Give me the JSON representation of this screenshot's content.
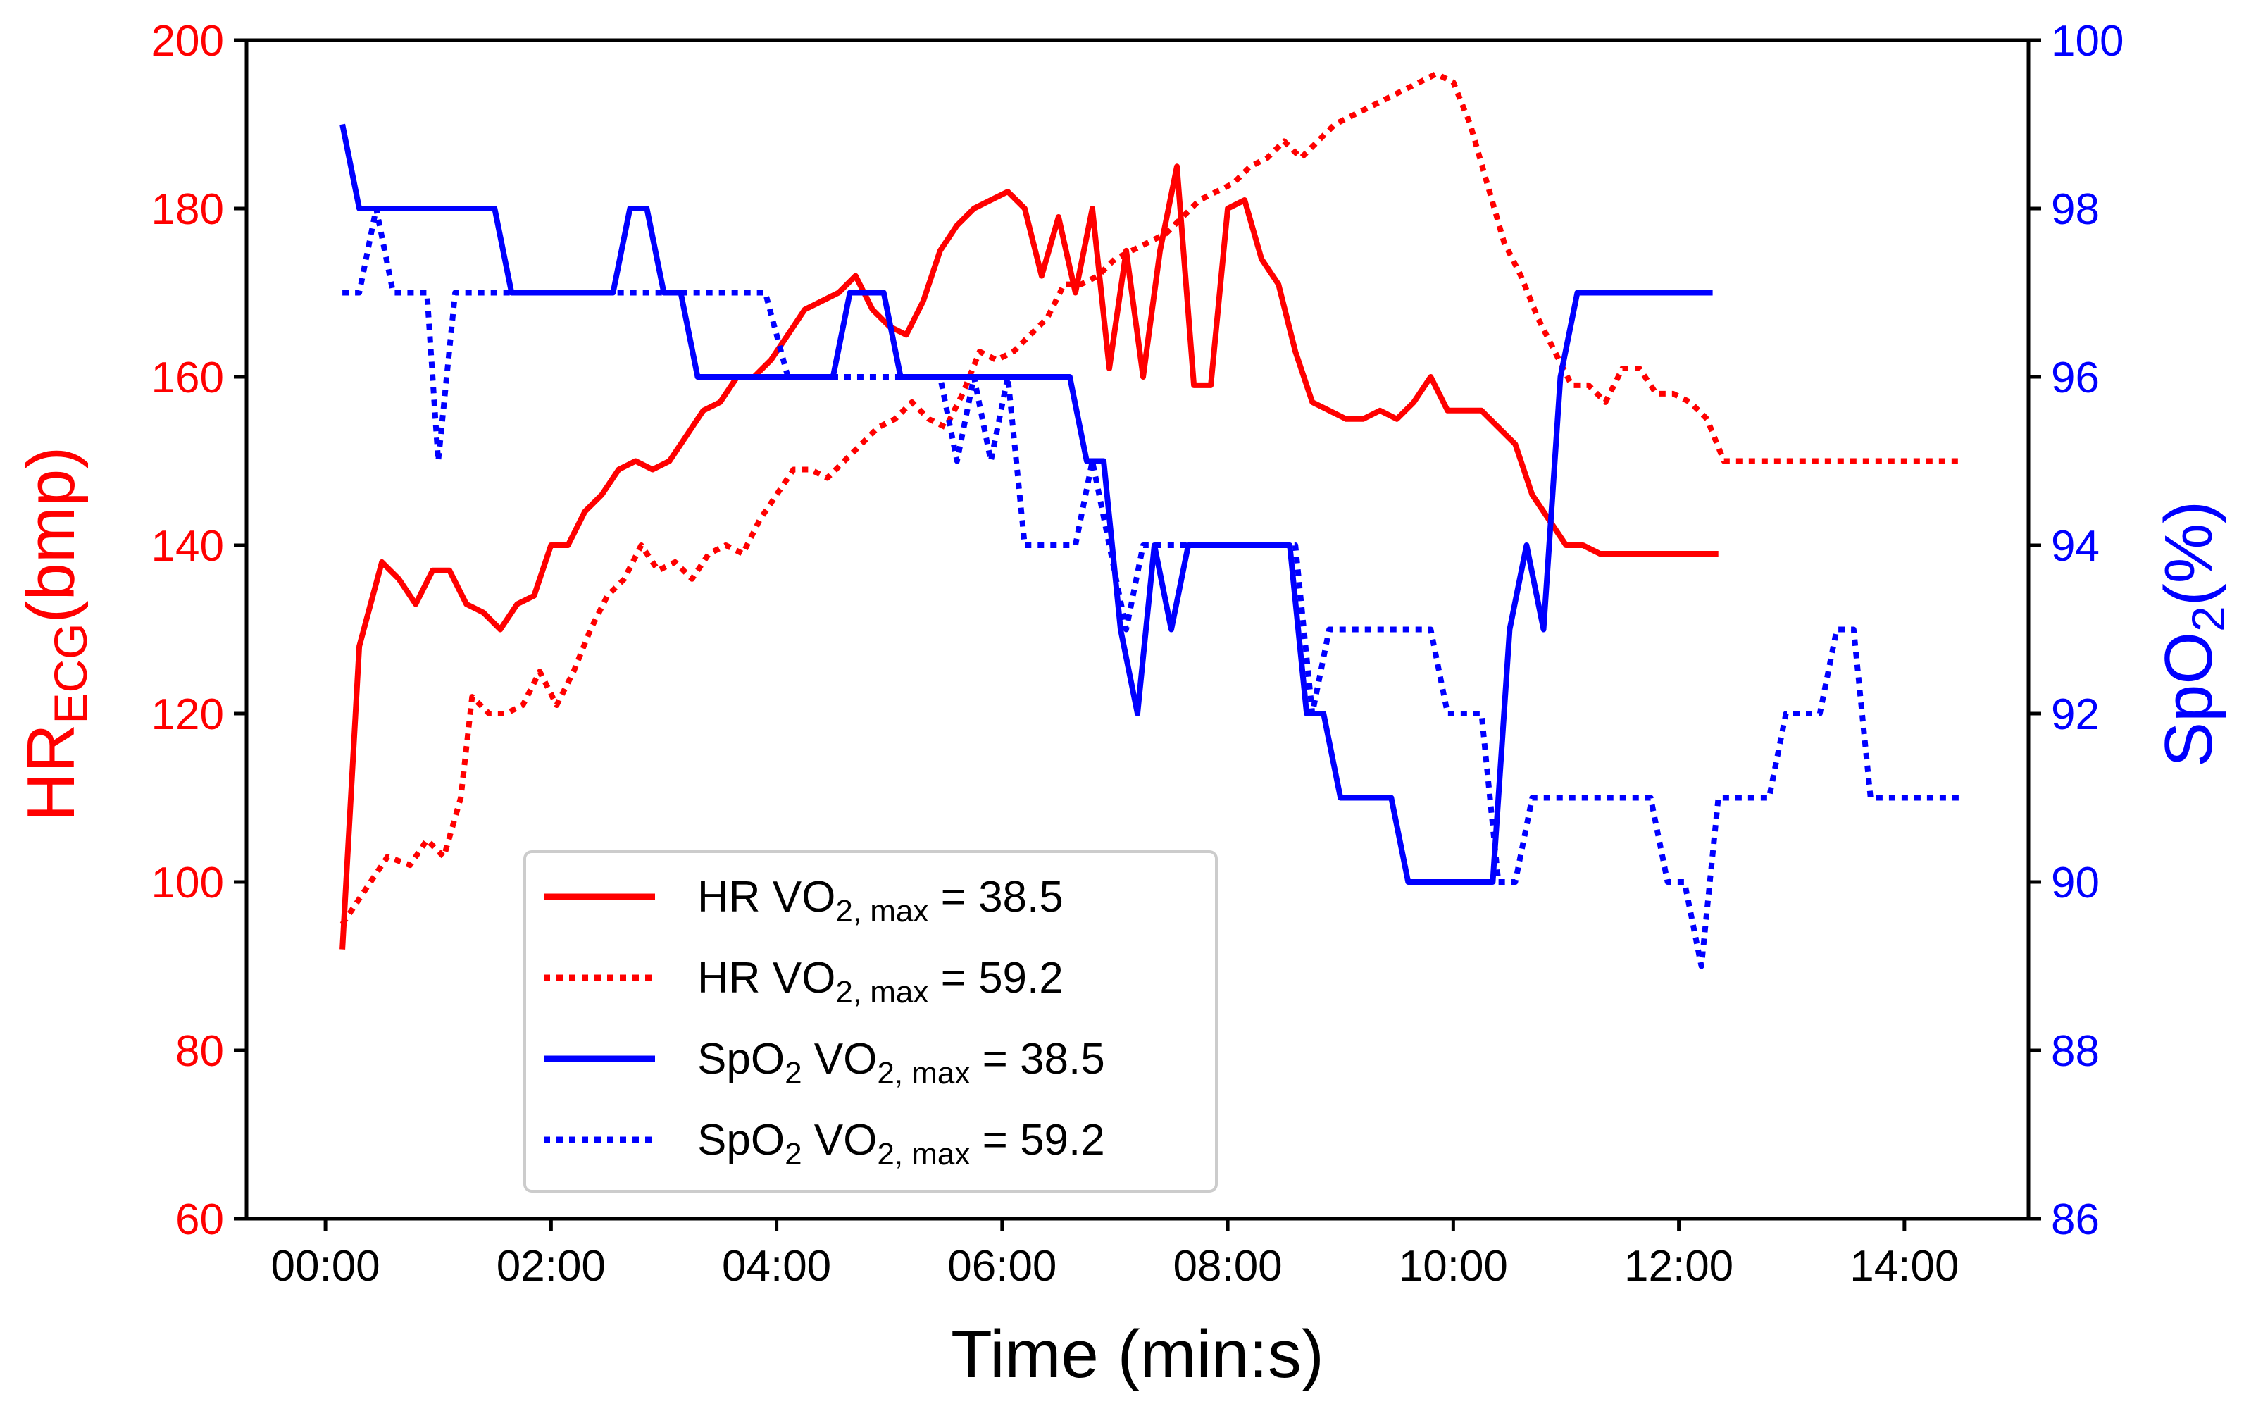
{
  "chart_data": {
    "type": "line",
    "xlabel": "Time (min:s)",
    "ylabel_left": {
      "main": "HR",
      "sub": "ECG",
      "suffix": "(bmp)"
    },
    "ylabel_right": {
      "main": "SpO",
      "sub": "2",
      "suffix": "(%)"
    },
    "xlim": [
      -0.7,
      15.1
    ],
    "ylim_left": [
      60,
      200
    ],
    "ylim_right": [
      86,
      100
    ],
    "x_ticks": [
      {
        "value": 0,
        "label": "00:00"
      },
      {
        "value": 2,
        "label": "02:00"
      },
      {
        "value": 4,
        "label": "04:00"
      },
      {
        "value": 6,
        "label": "06:00"
      },
      {
        "value": 8,
        "label": "08:00"
      },
      {
        "value": 10,
        "label": "10:00"
      },
      {
        "value": 12,
        "label": "12:00"
      },
      {
        "value": 14,
        "label": "14:00"
      }
    ],
    "y_ticks_left": [
      "60",
      "80",
      "100",
      "120",
      "140",
      "160",
      "180",
      "200"
    ],
    "y_ticks_right": [
      "86",
      "88",
      "90",
      "92",
      "94",
      "96",
      "98",
      "100"
    ],
    "colors": {
      "hr": "#ff0000",
      "spo2": "#0000ff",
      "axis": "#000000"
    },
    "legend_position": "lower-center",
    "series": [
      {
        "id": "hr_385",
        "name": "HR VO2,max = 38.5",
        "legend": {
          "a": "HR VO",
          "a_sub": "2, max",
          "b": " = 38.5"
        },
        "axis": "left",
        "color": "#ff0000",
        "style": "solid",
        "x": [
          0.15,
          0.3,
          0.5,
          0.65,
          0.8,
          0.95,
          1.1,
          1.25,
          1.4,
          1.55,
          1.7,
          1.85,
          2.0,
          2.15,
          2.3,
          2.45,
          2.6,
          2.75,
          2.9,
          3.05,
          3.2,
          3.35,
          3.5,
          3.65,
          3.8,
          3.95,
          4.1,
          4.25,
          4.4,
          4.55,
          4.7,
          4.85,
          5.0,
          5.15,
          5.3,
          5.45,
          5.6,
          5.75,
          5.9,
          6.05,
          6.2,
          6.35,
          6.5,
          6.65,
          6.8,
          6.95,
          7.1,
          7.25,
          7.4,
          7.55,
          7.7,
          7.85,
          8.0,
          8.15,
          8.3,
          8.45,
          8.6,
          8.75,
          8.9,
          9.05,
          9.2,
          9.35,
          9.5,
          9.65,
          9.8,
          9.95,
          10.1,
          10.25,
          10.4,
          10.55,
          10.7,
          10.85,
          11.0,
          11.15,
          11.3,
          11.45,
          11.6,
          11.75,
          11.9,
          12.05,
          12.2,
          12.35
        ],
        "y": [
          92,
          128,
          138,
          136,
          133,
          137,
          137,
          133,
          132,
          130,
          133,
          134,
          140,
          140,
          144,
          146,
          149,
          150,
          149,
          150,
          153,
          156,
          157,
          160,
          160,
          162,
          165,
          168,
          169,
          170,
          172,
          168,
          166,
          165,
          169,
          175,
          178,
          180,
          181,
          182,
          180,
          172,
          179,
          170,
          180,
          161,
          175,
          160,
          175,
          185,
          159,
          159,
          180,
          181,
          174,
          171,
          163,
          157,
          156,
          155,
          155,
          156,
          155,
          157,
          160,
          156,
          156,
          156,
          154,
          152,
          146,
          143,
          140,
          140,
          139,
          139,
          139,
          139,
          139,
          139,
          139,
          139
        ]
      },
      {
        "id": "hr_592",
        "name": "HR VO2,max = 59.2",
        "legend": {
          "a": "HR VO",
          "a_sub": "2, max",
          "b": " = 59.2"
        },
        "axis": "left",
        "color": "#ff0000",
        "style": "dotted",
        "x": [
          0.15,
          0.35,
          0.55,
          0.75,
          0.9,
          1.05,
          1.2,
          1.3,
          1.45,
          1.6,
          1.75,
          1.9,
          2.05,
          2.2,
          2.35,
          2.5,
          2.65,
          2.8,
          2.95,
          3.1,
          3.25,
          3.4,
          3.55,
          3.7,
          3.85,
          4.0,
          4.15,
          4.3,
          4.45,
          4.6,
          4.75,
          4.9,
          5.05,
          5.2,
          5.35,
          5.5,
          5.65,
          5.8,
          5.95,
          6.1,
          6.25,
          6.4,
          6.55,
          6.7,
          6.85,
          7.0,
          7.15,
          7.3,
          7.45,
          7.6,
          7.75,
          7.9,
          8.05,
          8.2,
          8.35,
          8.5,
          8.65,
          8.8,
          8.95,
          9.1,
          9.25,
          9.4,
          9.55,
          9.7,
          9.85,
          10.0,
          10.15,
          10.3,
          10.45,
          10.6,
          10.75,
          10.9,
          11.05,
          11.2,
          11.35,
          11.5,
          11.65,
          11.8,
          11.95,
          12.1,
          12.25,
          12.4,
          12.55,
          12.7,
          12.85,
          13.0,
          13.15,
          13.3,
          13.45,
          13.6,
          13.75,
          13.9,
          14.05,
          14.2,
          14.35,
          14.5
        ],
        "y": [
          95,
          99,
          103,
          102,
          105,
          103,
          110,
          122,
          120,
          120,
          121,
          125,
          121,
          125,
          130,
          134,
          136,
          140,
          137,
          138,
          136,
          139,
          140,
          139,
          143,
          146,
          149,
          149,
          148,
          150,
          152,
          154,
          155,
          157,
          155,
          154,
          158,
          163,
          162,
          163,
          165,
          167,
          171,
          171,
          172,
          174,
          175,
          176,
          177,
          179,
          181,
          182,
          183,
          185,
          186,
          188,
          186,
          188,
          190,
          191,
          192,
          193,
          194,
          195,
          196,
          195,
          190,
          183,
          176,
          172,
          167,
          163,
          159,
          159,
          157,
          161,
          161,
          158,
          158,
          157,
          155,
          150,
          150,
          150,
          150,
          150,
          150,
          150,
          150,
          150,
          150,
          150,
          150,
          150,
          150,
          150
        ]
      },
      {
        "id": "spo2_385",
        "name": "SpO2 VO2,max = 38.5",
        "legend": {
          "a": "SpO",
          "a_sub": "2",
          "b": " VO",
          "b_sub": "2, max",
          "c": " = 38.5"
        },
        "axis": "right",
        "color": "#0000ff",
        "style": "solid",
        "x": [
          0.15,
          0.3,
          0.45,
          0.6,
          0.75,
          0.9,
          1.05,
          1.2,
          1.35,
          1.5,
          1.65,
          1.8,
          1.95,
          2.1,
          2.25,
          2.4,
          2.55,
          2.7,
          2.85,
          3.0,
          3.15,
          3.3,
          3.45,
          3.6,
          3.75,
          3.9,
          4.05,
          4.2,
          4.35,
          4.5,
          4.65,
          4.8,
          4.95,
          5.1,
          5.25,
          5.4,
          5.55,
          5.7,
          5.85,
          6.0,
          6.15,
          6.3,
          6.45,
          6.6,
          6.75,
          6.9,
          7.05,
          7.2,
          7.35,
          7.5,
          7.65,
          7.8,
          7.95,
          8.1,
          8.25,
          8.4,
          8.55,
          8.7,
          8.85,
          9.0,
          9.15,
          9.3,
          9.45,
          9.6,
          9.75,
          9.9,
          10.05,
          10.2,
          10.35,
          10.5,
          10.65,
          10.8,
          10.95,
          11.1,
          11.25,
          11.4,
          11.55,
          11.7,
          11.85,
          12.0,
          12.15,
          12.3
        ],
        "y": [
          99,
          98,
          98,
          98,
          98,
          98,
          98,
          98,
          98,
          98,
          97,
          97,
          97,
          97,
          97,
          97,
          97,
          98,
          98,
          97,
          97,
          96,
          96,
          96,
          96,
          96,
          96,
          96,
          96,
          96,
          97,
          97,
          97,
          96,
          96,
          96,
          96,
          96,
          96,
          96,
          96,
          96,
          96,
          96,
          95,
          95,
          93,
          92,
          94,
          93,
          94,
          94,
          94,
          94,
          94,
          94,
          94,
          92,
          92,
          91,
          91,
          91,
          91,
          90,
          90,
          90,
          90,
          90,
          90,
          93,
          94,
          93,
          96,
          97,
          97,
          97,
          97,
          97,
          97,
          97,
          97,
          97
        ]
      },
      {
        "id": "spo2_592",
        "name": "SpO2 VO2,max = 59.2",
        "legend": {
          "a": "SpO",
          "a_sub": "2",
          "b": " VO",
          "b_sub": "2, max",
          "c": " = 59.2"
        },
        "axis": "right",
        "color": "#0000ff",
        "style": "dotted",
        "x": [
          0.15,
          0.3,
          0.45,
          0.6,
          0.75,
          0.9,
          1.0,
          1.15,
          1.3,
          1.5,
          1.7,
          1.9,
          2.1,
          2.3,
          2.5,
          2.7,
          2.9,
          3.1,
          3.3,
          3.5,
          3.7,
          3.9,
          4.1,
          4.3,
          4.5,
          4.7,
          4.9,
          5.1,
          5.3,
          5.45,
          5.6,
          5.75,
          5.9,
          6.05,
          6.2,
          6.35,
          6.5,
          6.65,
          6.8,
          6.95,
          7.1,
          7.25,
          7.4,
          7.55,
          7.7,
          7.85,
          8.0,
          8.15,
          8.3,
          8.45,
          8.6,
          8.75,
          8.9,
          9.05,
          9.2,
          9.35,
          9.5,
          9.65,
          9.8,
          9.95,
          10.1,
          10.25,
          10.4,
          10.55,
          10.7,
          10.85,
          11.0,
          11.15,
          11.3,
          11.45,
          11.6,
          11.75,
          11.9,
          12.05,
          12.2,
          12.35,
          12.5,
          12.65,
          12.8,
          12.95,
          13.1,
          13.25,
          13.4,
          13.55,
          13.7,
          13.85,
          14.0,
          14.15,
          14.3,
          14.5
        ],
        "y": [
          97,
          97,
          98,
          97,
          97,
          97,
          95,
          97,
          97,
          97,
          97,
          97,
          97,
          97,
          97,
          97,
          97,
          97,
          97,
          97,
          97,
          97,
          96,
          96,
          96,
          96,
          96,
          96,
          96,
          96,
          95,
          96,
          95,
          96,
          94,
          94,
          94,
          94,
          95,
          94,
          93,
          94,
          94,
          94,
          94,
          94,
          94,
          94,
          94,
          94,
          94,
          92,
          93,
          93,
          93,
          93,
          93,
          93,
          93,
          92,
          92,
          92,
          90,
          90,
          91,
          91,
          91,
          91,
          91,
          91,
          91,
          91,
          90,
          90,
          89,
          91,
          91,
          91,
          91,
          92,
          92,
          92,
          93,
          93,
          91,
          91,
          91,
          91,
          91,
          91
        ]
      }
    ]
  }
}
